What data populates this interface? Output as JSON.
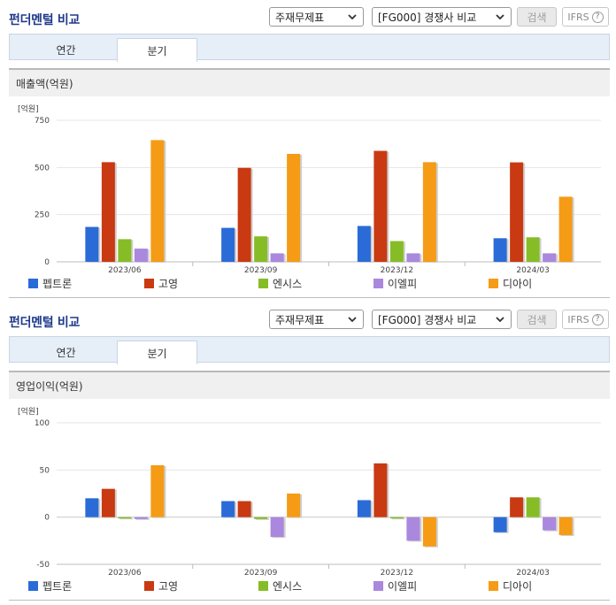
{
  "header": {
    "title": "펀더멘털 비교",
    "select1": "주재무제표",
    "select2": "[FG000] 경쟁사 비교",
    "search_label": "검색",
    "ifrs_label": "IFRS",
    "help_glyph": "?"
  },
  "tabs": [
    {
      "label": "연간",
      "active": false
    },
    {
      "label": "분기",
      "active": true
    }
  ],
  "series_colors": [
    "#2a6bd8",
    "#c93a12",
    "#86bd27",
    "#a988dd",
    "#f59b16"
  ],
  "legend": [
    "펩트론",
    "고영",
    "엔시스",
    "이엘피",
    "디아이"
  ],
  "chart_data": [
    {
      "type": "bar",
      "title": "매출액(억원)",
      "unit_label": "[억원]",
      "categories": [
        "2023/06",
        "2023/09",
        "2023/12",
        "2024/03"
      ],
      "ylim": [
        0,
        750
      ],
      "yticks": [
        0,
        250,
        500,
        750
      ],
      "ytick_labels": [
        "0",
        "250",
        "500",
        "750"
      ],
      "grid": true,
      "legend_position": "bottom",
      "series": [
        {
          "name": "펩트론",
          "values": [
            185,
            180,
            190,
            125
          ]
        },
        {
          "name": "고영",
          "values": [
            528,
            498,
            588,
            527
          ]
        },
        {
          "name": "엔시스",
          "values": [
            120,
            135,
            110,
            130
          ]
        },
        {
          "name": "이엘피",
          "values": [
            70,
            45,
            45,
            45
          ]
        },
        {
          "name": "디아이",
          "values": [
            645,
            572,
            528,
            345
          ]
        }
      ]
    },
    {
      "type": "bar",
      "title": "영업이익(억원)",
      "unit_label": "[억원]",
      "categories": [
        "2023/06",
        "2023/09",
        "2023/12",
        "2024/03"
      ],
      "ylim": [
        -50,
        100
      ],
      "yticks": [
        -50,
        0,
        50,
        100
      ],
      "ytick_labels": [
        "-50",
        "0",
        "50",
        "100"
      ],
      "grid": true,
      "legend_position": "bottom",
      "series": [
        {
          "name": "펩트론",
          "values": [
            20,
            17,
            18,
            -16
          ]
        },
        {
          "name": "고영",
          "values": [
            30,
            17,
            57,
            21
          ]
        },
        {
          "name": "엔시스",
          "values": [
            0,
            -2,
            -1,
            21
          ]
        },
        {
          "name": "이엘피",
          "values": [
            -2,
            -21,
            -25,
            -14
          ]
        },
        {
          "name": "디아이",
          "values": [
            55,
            25,
            -31,
            -19
          ]
        }
      ]
    }
  ]
}
